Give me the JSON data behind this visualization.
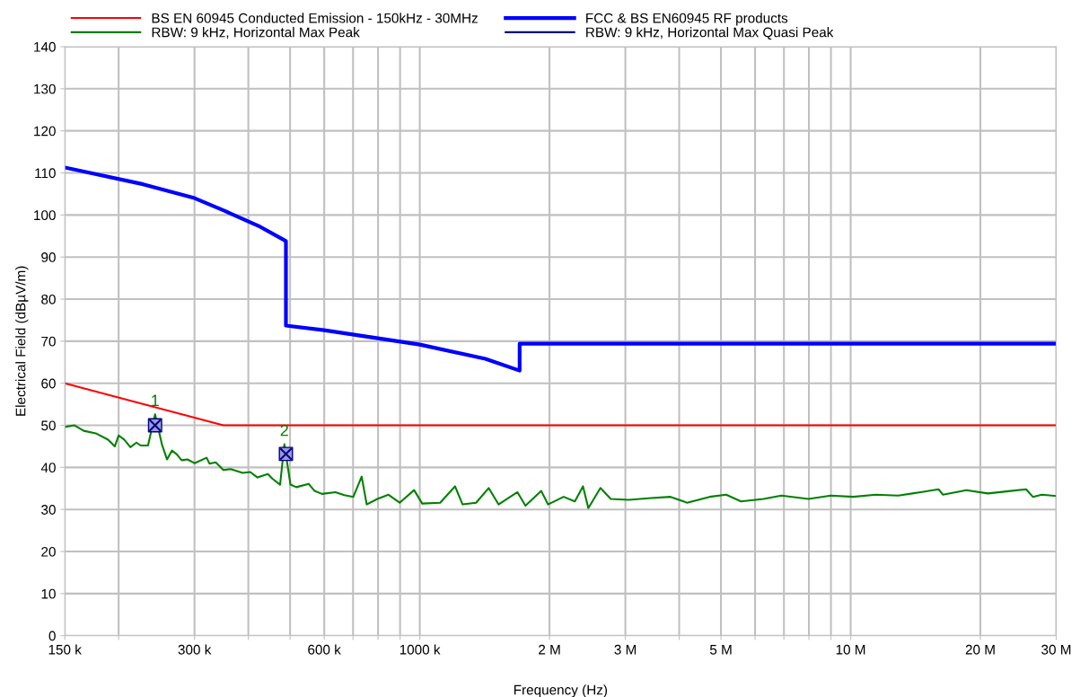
{
  "chart_data": {
    "type": "line",
    "xlabel": "Frequency (Hz)",
    "ylabel": "Electrical Field (dBµV/m)",
    "log": "x",
    "grid": true,
    "legend": "top",
    "marker": "none",
    "line_style": "solid",
    "xlim": [
      150000,
      30000000
    ],
    "xticks": [
      {
        "value": 150000,
        "label": "150 k"
      },
      {
        "value": 200000,
        "label": null
      },
      {
        "value": 300000,
        "label": "300 k"
      },
      {
        "value": 400000,
        "label": null
      },
      {
        "value": 500000,
        "label": null
      },
      {
        "value": 600000,
        "label": "600 k"
      },
      {
        "value": 700000,
        "label": null
      },
      {
        "value": 800000,
        "label": null
      },
      {
        "value": 900000,
        "label": null
      },
      {
        "value": 1000000,
        "label": "1000 k"
      },
      {
        "value": 2000000,
        "label": "2 M"
      },
      {
        "value": 3000000,
        "label": "3 M"
      },
      {
        "value": 4000000,
        "label": null
      },
      {
        "value": 5000000,
        "label": "5 M"
      },
      {
        "value": 6000000,
        "label": null
      },
      {
        "value": 7000000,
        "label": null
      },
      {
        "value": 8000000,
        "label": null
      },
      {
        "value": 9000000,
        "label": null
      },
      {
        "value": 10000000,
        "label": "10 M"
      },
      {
        "value": 20000000,
        "label": "20 M"
      },
      {
        "value": 30000000,
        "label": "30 M"
      }
    ],
    "ylim": [
      0,
      140
    ],
    "yticks": [
      0,
      10,
      20,
      30,
      40,
      50,
      60,
      70,
      80,
      90,
      100,
      110,
      120,
      130,
      140
    ],
    "series": [
      {
        "name": "BS EN 60945 Conducted Emission - 150kHz - 30MHz",
        "color": "#ff0000",
        "x": [
          150000,
          350000,
          30000000
        ],
        "values": [
          60,
          50,
          50
        ]
      },
      {
        "name": "FCC & BS EN60945 RF products",
        "color": "#0000ff",
        "x": [
          150000,
          228000,
          300000,
          352000,
          426000,
          489000,
          489000,
          600000,
          1000000,
          1420000,
          1705000,
          1705000,
          30000000
        ],
        "values": [
          111.3,
          107.3,
          104,
          101,
          97.2,
          93.8,
          73.7,
          72.6,
          69.2,
          65.8,
          63,
          69.4,
          69.4
        ]
      },
      {
        "name": "RBW: 9 kHz, Horizontal Max Peak",
        "color": "#008000",
        "x": [
          150000,
          158000,
          166000,
          177000,
          189000,
          196000,
          200000,
          206000,
          213000,
          220000,
          225000,
          234000,
          243000,
          252000,
          259000,
          266000,
          273000,
          280000,
          289000,
          300000,
          320000,
          325000,
          336000,
          350000,
          364000,
          388000,
          404000,
          420000,
          444000,
          455000,
          474000,
          485000,
          501000,
          517000,
          552000,
          570000,
          593000,
          637000,
          668000,
          701000,
          733000,
          753000,
          797000,
          846000,
          898000,
          970000,
          1013000,
          1115000,
          1207000,
          1257000,
          1351000,
          1445000,
          1523000,
          1685000,
          1759000,
          1914000,
          1984000,
          2157000,
          2290000,
          2392000,
          2461000,
          2626000,
          2775000,
          3056000,
          3444000,
          3819000,
          4173000,
          4705000,
          5142000,
          5566000,
          6276000,
          6907000,
          7978000,
          8993000,
          10137000,
          11431000,
          12891000,
          14530000,
          15996000,
          16383000,
          18561000,
          20829000,
          23483000,
          25537000,
          26478000,
          27776000,
          30000000
        ],
        "values": [
          49.6,
          50,
          48.7,
          48.1,
          46.6,
          45,
          47.6,
          46.6,
          44.8,
          45.9,
          45.2,
          45.2,
          52.6,
          45.5,
          41.9,
          44,
          43.1,
          41.7,
          41.9,
          41,
          42.3,
          40.9,
          41.2,
          39.4,
          39.6,
          38.7,
          38.9,
          37.6,
          38.4,
          37.3,
          35.9,
          45.5,
          35.9,
          35.3,
          36.1,
          34.4,
          33.7,
          34.1,
          33.4,
          33,
          37.8,
          31.2,
          32.5,
          33.5,
          31.6,
          34.6,
          31.4,
          31.6,
          35.5,
          31.2,
          31.6,
          35.1,
          31.2,
          34.1,
          30.9,
          34.4,
          31.2,
          33,
          31.9,
          35.5,
          30.3,
          35.1,
          32.5,
          32.3,
          32.7,
          33,
          31.6,
          33,
          33.5,
          31.9,
          32.5,
          33.3,
          32.5,
          33.3,
          33,
          33.5,
          33.3,
          34.1,
          34.8,
          33.5,
          34.6,
          33.8,
          34.4,
          34.8,
          33,
          33.5,
          33.2
        ]
      },
      {
        "name": "RBW: 9 kHz, Horizontal Max Quasi Peak",
        "color": "#000080",
        "type": "scatter",
        "marker": "square",
        "x": [
          243000,
          489000
        ],
        "values": [
          50,
          43.2
        ]
      }
    ],
    "annotations": [
      {
        "text": "1",
        "x": 243000,
        "y": 52.6
      },
      {
        "text": "2",
        "x": 485000,
        "y": 45.5
      }
    ]
  }
}
